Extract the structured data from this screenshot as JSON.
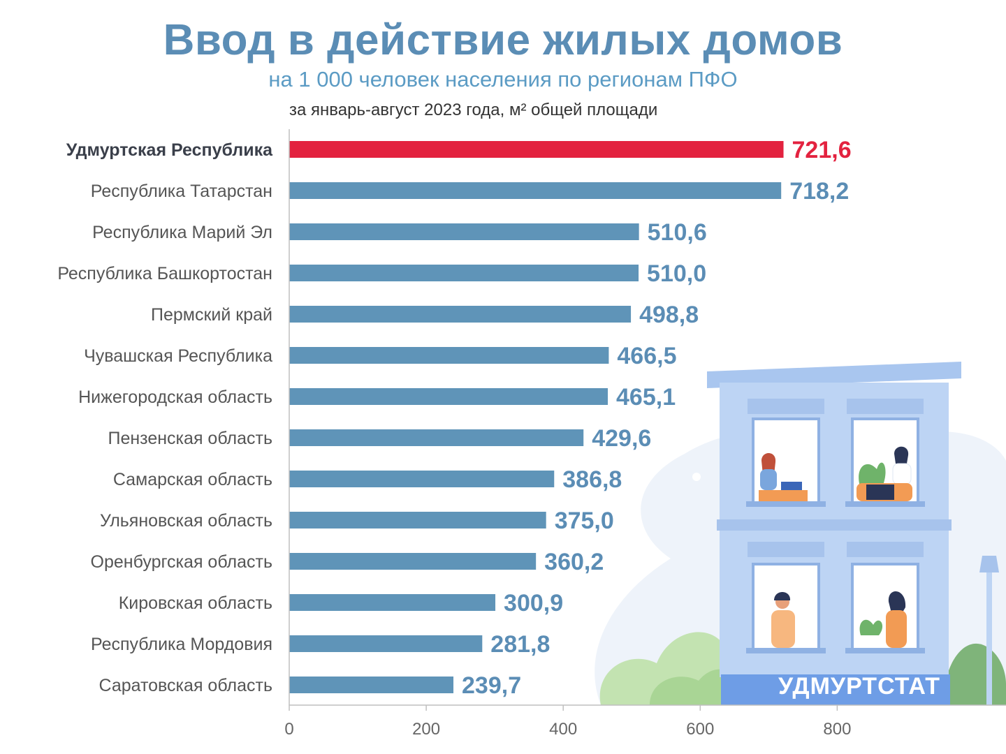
{
  "header": {
    "title": "Ввод в действие жилых домов",
    "subtitle": "на 1 000 человек населения по регионам ПФО",
    "note": "за январь-август 2023 года, м² общей площади"
  },
  "brand": "УДМУРТСТАТ",
  "colors": {
    "bar": "#5f94b8",
    "highlight": "#e3223f",
    "value_text": "#5b8db5",
    "title": "#5b8db5"
  },
  "illustration_icon": "apartment-building-with-people-in-windows",
  "chart_data": {
    "type": "bar",
    "orientation": "horizontal",
    "categories": [
      "Удмуртская Республика",
      "Республика Татарстан",
      "Республика Марий Эл",
      "Республика Башкортостан",
      "Пермский край",
      "Чувашская Республика",
      "Нижегородская область",
      "Пензенская область",
      "Самарская область",
      "Ульяновская область",
      "Оренбургская область",
      "Кировская область",
      "Республика Мордовия",
      "Саратовская область"
    ],
    "values": [
      721.6,
      718.2,
      510.6,
      510.0,
      498.8,
      466.5,
      465.1,
      429.6,
      386.8,
      375.0,
      360.2,
      300.9,
      281.8,
      239.7
    ],
    "value_labels": [
      "721,6",
      "718,2",
      "510,6",
      "510,0",
      "498,8",
      "466,5",
      "465,1",
      "429,6",
      "386,8",
      "375,0",
      "360,2",
      "300,9",
      "281,8",
      "239,7"
    ],
    "highlight_index": 0,
    "xticks": [
      "0",
      "200",
      "400",
      "600",
      "800"
    ],
    "xtick_values": [
      0,
      200,
      400,
      600,
      800
    ],
    "xlim": [
      0,
      1000
    ],
    "grid": false,
    "title": "",
    "xlabel": "",
    "ylabel": ""
  }
}
